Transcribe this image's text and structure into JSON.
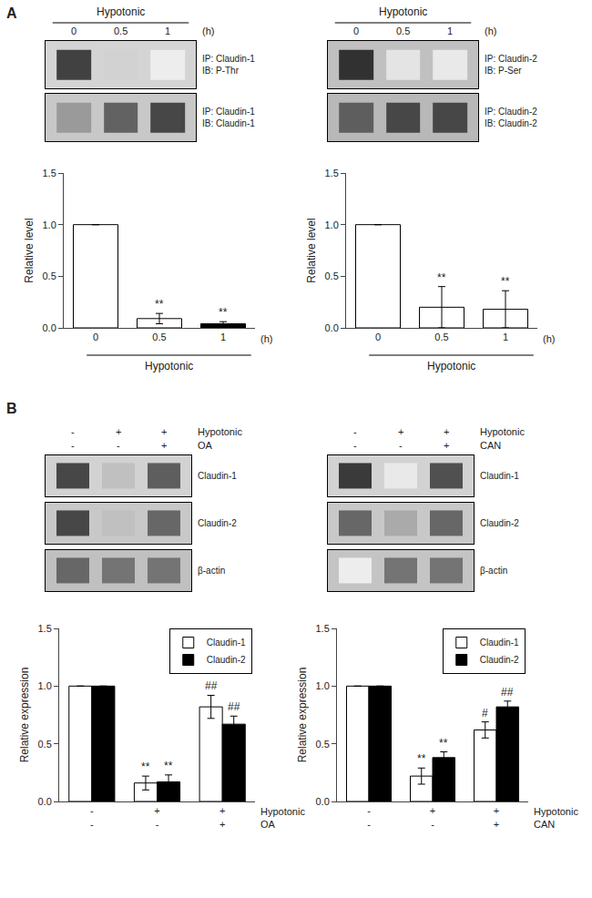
{
  "chart_data": [
    {
      "panel": "A",
      "type": "heatmap",
      "title": "Hypotonic",
      "categories": [
        "0",
        "0.5",
        "1"
      ],
      "xunit": "(h)",
      "blots": [
        {
          "labels": [
            "IP: Claudin-1",
            "IB: P-Thr"
          ],
          "cells": [
            0.85,
            0.2,
            0.08
          ],
          "color": "#d4d4d4"
        },
        {
          "labels": [
            "IP: Claudin-1",
            "IB: Claudin-1"
          ],
          "cells": [
            0.45,
            0.7,
            0.82
          ],
          "color": "#c8c8c8"
        }
      ]
    },
    {
      "panel": "A",
      "type": "heatmap",
      "title": "Hypotonic",
      "categories": [
        "0",
        "0.5",
        "1"
      ],
      "xunit": "(h)",
      "blots": [
        {
          "labels": [
            "IP: Claudin-2",
            "IB: P-Ser"
          ],
          "cells": [
            0.92,
            0.12,
            0.1
          ],
          "color": "#c0c0c0"
        },
        {
          "labels": [
            "IP: Claudin-2",
            "IB: Claudin-2"
          ],
          "cells": [
            0.72,
            0.82,
            0.82
          ],
          "color": "#b8b8b8"
        }
      ]
    },
    {
      "panel": "A",
      "type": "bar",
      "categories": [
        "0",
        "0.5",
        "1"
      ],
      "xunit": "(h)",
      "xlabel": "Hypotonic",
      "ylabel": "Relative level",
      "ylim": [
        0,
        1.5
      ],
      "yticks": [
        {
          "value": 0,
          "label": "0.0"
        },
        0.5,
        {
          "value": 1.0,
          "label": "1.0"
        },
        1.5
      ],
      "grid": false,
      "series": [
        {
          "values": [
            1.0,
            0.09,
            0.04
          ],
          "errors": [
            0.0,
            0.05,
            0.02
          ],
          "colors": [
            "white",
            "white",
            "black"
          ],
          "sig_labels": [
            null,
            "**",
            "**"
          ]
        }
      ]
    },
    {
      "panel": "A",
      "type": "bar",
      "categories": [
        "0",
        "0.5",
        "1"
      ],
      "xunit": "(h)",
      "xlabel": "Hypotonic",
      "ylabel": "Relative level",
      "ylim": [
        0,
        1.5
      ],
      "yticks": [
        {
          "value": 0,
          "label": "0.0"
        },
        0.5,
        {
          "value": 1.0,
          "label": "1.0"
        },
        1.5
      ],
      "grid": false,
      "series": [
        {
          "values": [
            1.0,
            0.2,
            0.18
          ],
          "errors": [
            0.0,
            0.2,
            0.18
          ],
          "colors": [
            "white",
            "white",
            "white"
          ],
          "sig_labels": [
            null,
            "**",
            "**"
          ]
        }
      ]
    },
    {
      "panel": "B",
      "type": "heatmap",
      "x_rows": [
        {
          "label": "Hypotonic",
          "ticks": [
            "-",
            "+",
            "+"
          ]
        },
        {
          "label": "OA",
          "ticks": [
            "-",
            "-",
            "+"
          ]
        }
      ],
      "blots": [
        {
          "labels": [
            "Claudin-1"
          ],
          "cells": [
            0.82,
            0.28,
            0.72
          ],
          "color": "#d2d2d2"
        },
        {
          "labels": [
            "Claudin-2"
          ],
          "cells": [
            0.82,
            0.28,
            0.68
          ],
          "color": "#c8c8c8"
        },
        {
          "labels": [
            "β-actin"
          ],
          "cells": [
            0.68,
            0.62,
            0.62
          ],
          "color": "#c0c0c0"
        }
      ]
    },
    {
      "panel": "B",
      "type": "heatmap",
      "x_rows": [
        {
          "label": "Hypotonic",
          "ticks": [
            "-",
            "+",
            "+"
          ]
        },
        {
          "label": "CAN",
          "ticks": [
            "-",
            "-",
            "+"
          ]
        }
      ],
      "blots": [
        {
          "labels": [
            "Claudin-1"
          ],
          "cells": [
            0.88,
            0.1,
            0.78
          ],
          "color": "#d2d2d2"
        },
        {
          "labels": [
            "Claudin-2"
          ],
          "cells": [
            0.68,
            0.38,
            0.68
          ],
          "color": "#c8c8c8"
        },
        {
          "labels": [
            "β-actin"
          ],
          "cells": [
            0.08,
            0.62,
            0.62
          ],
          "color": "#c4c4c4"
        }
      ]
    },
    {
      "panel": "B",
      "type": "bar",
      "x_rows": [
        {
          "label": "Hypotonic",
          "ticks": [
            "-",
            "+",
            "+"
          ]
        },
        {
          "label": "OA",
          "ticks": [
            "-",
            "-",
            "+"
          ]
        }
      ],
      "ylabel": "Relative expression",
      "ylim": [
        0,
        1.5
      ],
      "yticks": [
        {
          "value": 0,
          "label": "0.0"
        },
        0.5,
        {
          "value": 1.0,
          "label": "1.0"
        },
        1.5
      ],
      "grid": false,
      "legend": "upper right",
      "series": [
        {
          "name": "Claudin-1",
          "color": "white",
          "values": [
            1.0,
            0.16,
            0.82
          ],
          "errors": [
            0.0,
            0.06,
            0.1
          ],
          "sig_labels": [
            null,
            "**",
            "##"
          ]
        },
        {
          "name": "Claudin-2",
          "color": "black",
          "values": [
            1.0,
            0.17,
            0.67
          ],
          "errors": [
            0.0,
            0.06,
            0.07
          ],
          "sig_labels": [
            null,
            "**",
            "##"
          ]
        }
      ]
    },
    {
      "panel": "B",
      "type": "bar",
      "x_rows": [
        {
          "label": "Hypotonic",
          "ticks": [
            "-",
            "+",
            "+"
          ]
        },
        {
          "label": "CAN",
          "ticks": [
            "-",
            "-",
            "+"
          ]
        }
      ],
      "ylabel": "Relative expression",
      "ylim": [
        0,
        1.5
      ],
      "yticks": [
        {
          "value": 0,
          "label": "0.0"
        },
        0.5,
        {
          "value": 1.0,
          "label": "1.0"
        },
        1.5
      ],
      "grid": false,
      "legend": "upper right",
      "series": [
        {
          "name": "Claudin-1",
          "color": "white",
          "values": [
            1.0,
            0.22,
            0.62
          ],
          "errors": [
            0.0,
            0.07,
            0.07
          ],
          "sig_labels": [
            null,
            "**",
            "#"
          ]
        },
        {
          "name": "Claudin-2",
          "color": "black",
          "values": [
            1.0,
            0.38,
            0.82
          ],
          "errors": [
            0.0,
            0.05,
            0.05
          ],
          "sig_labels": [
            null,
            "**",
            "##"
          ]
        }
      ]
    }
  ]
}
